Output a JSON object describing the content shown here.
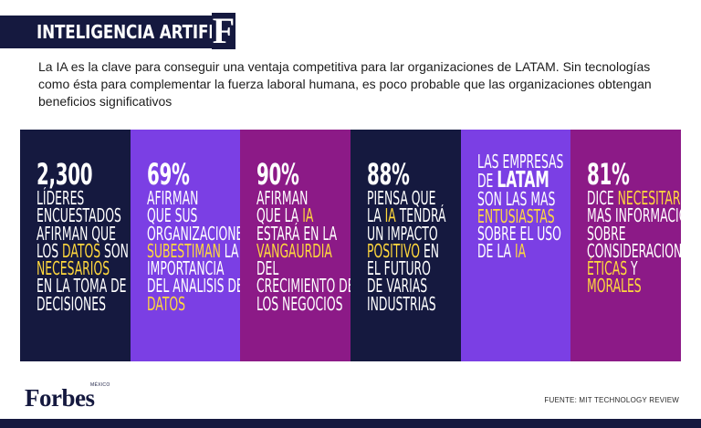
{
  "header": {
    "title": "INTELIGENCIA ARTIFICIAL",
    "logo_letter": "F"
  },
  "intro": "La IA es la clave para conseguir una ventaja competitiva para lar organizaciones de LATAM. Sin tecnologías como ésta para complementar la fuerza laboral humana, es poco probable que las organizaciones  obtengan beneficios significativos",
  "colors": {
    "navy": "#15193f",
    "purple": "#7b3fe4",
    "magenta": "#8c1a87",
    "highlight": "#ffd83d"
  },
  "panels": [
    {
      "stat": "2,300",
      "lines": [
        "LÍDERES",
        "ENCUESTADOS",
        "AFIRMAN QUE",
        "LOS DATOS SON",
        "NECESARIOS",
        "EN LA TOMA DE",
        "DECISIONES"
      ]
    },
    {
      "stat": "69%",
      "lines": [
        "AFIRMAN",
        "QUE SUS",
        "ORGANIZACIONES",
        "SUBESTIMAN LA",
        "IMPORTANCIA",
        "DEL ANALISIS DE",
        "DATOS"
      ]
    },
    {
      "stat": "90%",
      "lines": [
        "AFIRMAN",
        "QUE LA IA",
        "ESTARÁ EN LA",
        "VANGAURDIA",
        "DEL",
        "CRECIMIENTO DE",
        "LOS NEGOCIOS"
      ]
    },
    {
      "stat": "88%",
      "lines": [
        "PIENSA QUE",
        "LA IA TENDRÁ",
        "UN IMPACTO",
        "POSITIVO EN",
        "EL FUTURO",
        "DE VARIAS",
        "INDUSTRIAS"
      ]
    },
    {
      "lines": [
        "LAS EMPRESAS",
        "DE LATAM",
        "SON LAS MAS",
        "ENTUSIASTAS",
        "SOBRE EL USO",
        "DE LA IA"
      ]
    },
    {
      "stat": "81%",
      "lines": [
        "DICE NECESITAR",
        "MAS INFORMACIÓN",
        "SOBRE",
        "CONSIDERACIONES",
        "ÉTICAS Y",
        "MORALES"
      ]
    }
  ],
  "footer": {
    "brand": "Forbes",
    "edition": "MÉXICO",
    "source": "FUENTE: MIT TECHNOLOGY REVIEW"
  }
}
